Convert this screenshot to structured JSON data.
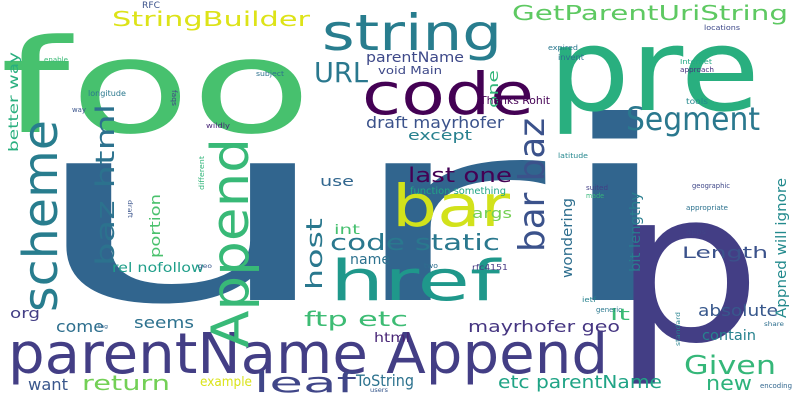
{
  "cloud": {
    "words": [
      {
        "text": "uri",
        "color": "#31658e"
      },
      {
        "text": "foo",
        "color": "#47c16e"
      },
      {
        "text": "p",
        "color": "#433e85"
      },
      {
        "text": "pre",
        "color": "#29af7f"
      },
      {
        "text": "parentName Append",
        "color": "#433e85"
      },
      {
        "text": "string",
        "color": "#287d8e"
      },
      {
        "text": "code",
        "color": "#440154"
      },
      {
        "text": "Append",
        "color": "#38b977"
      },
      {
        "text": "scheme",
        "color": "#287d8e"
      },
      {
        "text": "bar",
        "color": "#d2e21b"
      },
      {
        "text": "href",
        "color": "#1f988b"
      },
      {
        "text": "Segment",
        "color": "#2a788e"
      },
      {
        "text": "bar baz",
        "color": "#3b528b"
      },
      {
        "text": "baz html",
        "color": "#2c728e"
      },
      {
        "text": "GetParentUriString",
        "color": "#5ec962"
      },
      {
        "text": "StringBuilder",
        "color": "#dde318"
      },
      {
        "text": "URL",
        "color": "#2a788e"
      },
      {
        "text": "code static",
        "color": "#2a788e"
      },
      {
        "text": "leaf",
        "color": "#404688"
      },
      {
        "text": "Given",
        "color": "#35b779"
      },
      {
        "text": "host",
        "color": "#2a788e"
      },
      {
        "text": "last one",
        "color": "#440154"
      },
      {
        "text": "draft mayrhofer",
        "color": "#3b528b"
      },
      {
        "text": "ftp etc",
        "color": "#3dbc74"
      },
      {
        "text": "etc parentName",
        "color": "#20a486"
      },
      {
        "text": "mayrhofer geo",
        "color": "#453581"
      },
      {
        "text": "return",
        "color": "#73d056"
      },
      {
        "text": "new",
        "color": "#2eb37c"
      },
      {
        "text": "Length",
        "color": "#3b528b"
      },
      {
        "text": "absolute",
        "color": "#38588c"
      },
      {
        "text": "parentName",
        "color": "#3e4989"
      },
      {
        "text": "except",
        "color": "#27808e"
      },
      {
        "text": "one",
        "color": "#32b67a"
      },
      {
        "text": "use",
        "color": "#31668e"
      },
      {
        "text": "args",
        "color": "#75d054"
      },
      {
        "text": "name",
        "color": "#2c718e"
      },
      {
        "text": "int",
        "color": "#46c06f"
      },
      {
        "text": "portion",
        "color": "#4ac16d"
      },
      {
        "text": "rel nofollow",
        "color": "#1f9e89"
      },
      {
        "text": "seems",
        "color": "#2d718e"
      },
      {
        "text": "come",
        "color": "#2e6f8e"
      },
      {
        "text": "org",
        "color": "#433e85"
      },
      {
        "text": "want",
        "color": "#39568c"
      },
      {
        "text": "example",
        "color": "#dae319"
      },
      {
        "text": "ToString",
        "color": "#2c728e"
      },
      {
        "text": "html",
        "color": "#482576"
      },
      {
        "text": "lt",
        "color": "#3bbb75"
      },
      {
        "text": "contain",
        "color": "#26828e"
      },
      {
        "text": "wondering",
        "color": "#2e6e8e"
      },
      {
        "text": "bit lengthy",
        "color": "#287d8e"
      },
      {
        "text": "Appned will ignore",
        "color": "#238a8d"
      },
      {
        "text": "better way",
        "color": "#29af7f"
      },
      {
        "text": "void Main",
        "color": "#3e4989"
      },
      {
        "text": "Thanks Rohit",
        "color": "#440154"
      },
      {
        "text": "function something",
        "color": "#21a585"
      },
      {
        "text": "rfc4151",
        "color": "#453882"
      },
      {
        "text": "RFC",
        "color": "#3b528b"
      },
      {
        "text": "invent",
        "color": "#2c728e"
      },
      {
        "text": "expired",
        "color": "#2a778e"
      },
      {
        "text": "locations",
        "color": "#3e4989"
      },
      {
        "text": "approach",
        "color": "#46307e"
      },
      {
        "text": "Internet",
        "color": "#22a884"
      },
      {
        "text": "tools",
        "color": "#23898e"
      },
      {
        "text": "latitude",
        "color": "#24878e"
      },
      {
        "text": "longitude",
        "color": "#2a788e"
      },
      {
        "text": "faqs",
        "color": "#414487"
      },
      {
        "text": "enable",
        "color": "#3aba76"
      },
      {
        "text": "way",
        "color": "#3a548c"
      },
      {
        "text": "subject",
        "color": "#2d718e"
      },
      {
        "text": "wildly",
        "color": "#482677"
      },
      {
        "text": "different",
        "color": "#32b67a"
      },
      {
        "text": "draft",
        "color": "#3a548c"
      },
      {
        "text": "geo",
        "color": "#38588c"
      },
      {
        "text": "two",
        "color": "#2e6e8e"
      },
      {
        "text": "ietf",
        "color": "#26828e"
      },
      {
        "text": "generic",
        "color": "#2a788e"
      },
      {
        "text": "suited",
        "color": "#433e85"
      },
      {
        "text": "made",
        "color": "#35b779"
      },
      {
        "text": "geographic",
        "color": "#3f4788"
      },
      {
        "text": "appropriate",
        "color": "#2c728e"
      },
      {
        "text": "apps",
        "color": "#414487"
      },
      {
        "text": "share",
        "color": "#2e6f8e"
      },
      {
        "text": "standard",
        "color": "#26828e"
      },
      {
        "text": "users",
        "color": "#38588c"
      },
      {
        "text": "encoding",
        "color": "#31668e"
      },
      {
        "text": "tag",
        "color": "#31668e"
      }
    ]
  }
}
